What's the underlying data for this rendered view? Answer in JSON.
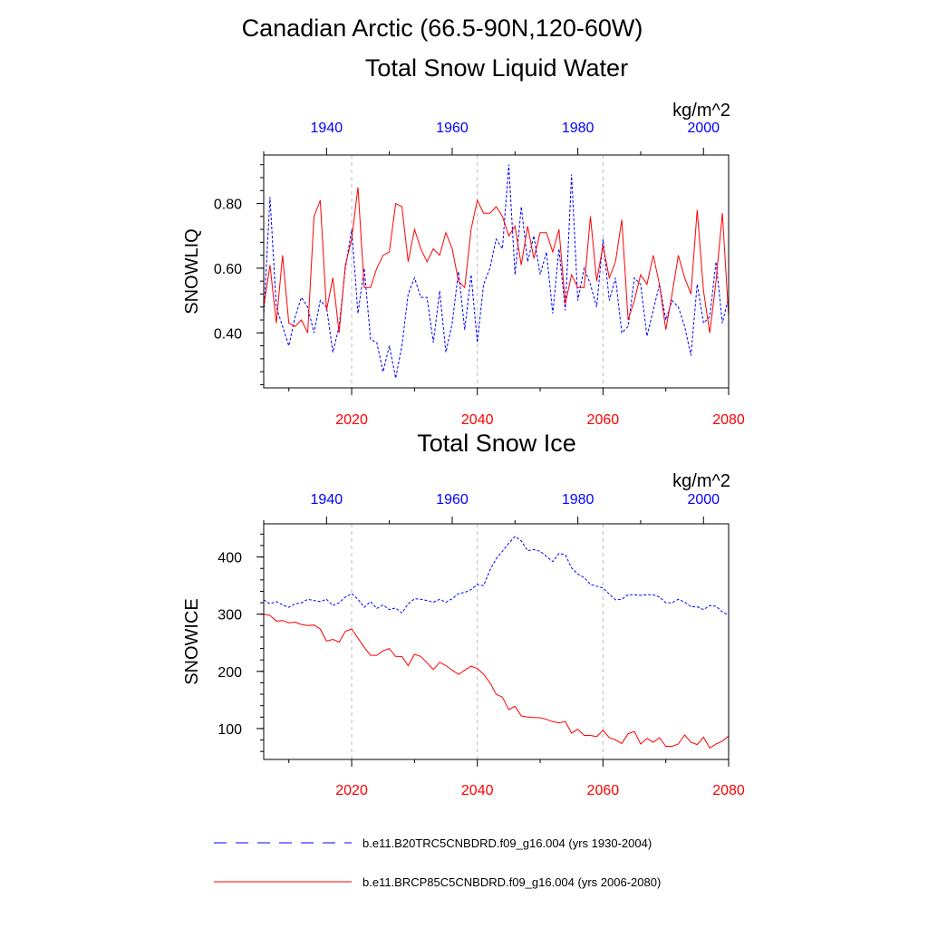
{
  "figure": {
    "title": "Canadian Arctic (66.5-90N,120-60W)"
  },
  "colors": {
    "series_a": "#0000ff",
    "series_b": "#ff0000",
    "grid": "#bbbbbb",
    "axis": "#000000"
  },
  "legend": {
    "items": [
      {
        "label": "b.e11.B20TRC5CNBDRD.f09_g16.004 (yrs 1930-2004)",
        "style": "dashed",
        "color": "#0000ff"
      },
      {
        "label": "b.e11.BRCP85C5CNBDRD.f09_g16.004 (yrs 2006-2080)",
        "style": "solid",
        "color": "#ff0000"
      }
    ]
  },
  "chart_data": [
    {
      "type": "line",
      "title": "Total Snow Liquid Water",
      "units": "kg/m^2",
      "ylabel": "SNOWLIQ",
      "ylim": [
        0.23,
        0.95
      ],
      "yticks": [
        0.4,
        0.6,
        0.8
      ],
      "ytick_labels": [
        "0.40",
        "0.60",
        "0.80"
      ],
      "bottom_axis": {
        "range": [
          2006,
          2080
        ],
        "ticks": [
          2020,
          2040,
          2060,
          2080
        ],
        "color": "#ff0000"
      },
      "top_axis": {
        "range": [
          1930,
          2004
        ],
        "ticks": [
          1940,
          1960,
          1980,
          2000
        ],
        "color": "#0000ff"
      },
      "grid_x": [
        2020,
        2040,
        2060
      ],
      "series": [
        {
          "name": "b.e11.B20TRC5CNBDRD.f09_g16.004 (yrs 1930-2004)",
          "color": "#0000ff",
          "style": "dashed",
          "axis": "top",
          "x": [
            1930,
            1931,
            1932,
            1933,
            1934,
            1935,
            1936,
            1937,
            1938,
            1939,
            1940,
            1941,
            1942,
            1943,
            1944,
            1945,
            1946,
            1947,
            1948,
            1949,
            1950,
            1951,
            1952,
            1953,
            1954,
            1955,
            1956,
            1957,
            1958,
            1959,
            1960,
            1961,
            1962,
            1963,
            1964,
            1965,
            1966,
            1967,
            1968,
            1969,
            1970,
            1971,
            1972,
            1973,
            1974,
            1975,
            1976,
            1977,
            1978,
            1979,
            1980,
            1981,
            1982,
            1983,
            1984,
            1985,
            1986,
            1987,
            1988,
            1989,
            1990,
            1991,
            1992,
            1993,
            1994,
            1995,
            1996,
            1997,
            1998,
            1999,
            2000,
            2001,
            2002,
            2003,
            2004
          ],
          "values": [
            0.45,
            0.82,
            0.48,
            0.42,
            0.36,
            0.45,
            0.51,
            0.48,
            0.4,
            0.5,
            0.48,
            0.34,
            0.42,
            0.6,
            0.72,
            0.46,
            0.6,
            0.38,
            0.37,
            0.28,
            0.36,
            0.26,
            0.36,
            0.52,
            0.57,
            0.51,
            0.51,
            0.37,
            0.53,
            0.34,
            0.43,
            0.59,
            0.41,
            0.58,
            0.37,
            0.55,
            0.6,
            0.69,
            0.66,
            0.92,
            0.58,
            0.79,
            0.62,
            0.7,
            0.58,
            0.65,
            0.46,
            0.66,
            0.47,
            0.89,
            0.5,
            0.6,
            0.55,
            0.48,
            0.69,
            0.5,
            0.57,
            0.4,
            0.42,
            0.57,
            0.55,
            0.39,
            0.47,
            0.55,
            0.44,
            0.5,
            0.48,
            0.42,
            0.33,
            0.55,
            0.43,
            0.45,
            0.62,
            0.43,
            0.51
          ]
        },
        {
          "name": "b.e11.BRCP85C5CNBDRD.f09_g16.004 (yrs 2006-2080)",
          "color": "#ff0000",
          "style": "solid",
          "axis": "bottom",
          "x": [
            2006,
            2007,
            2008,
            2009,
            2010,
            2011,
            2012,
            2013,
            2014,
            2015,
            2016,
            2017,
            2018,
            2019,
            2020,
            2021,
            2022,
            2023,
            2024,
            2025,
            2026,
            2027,
            2028,
            2029,
            2030,
            2031,
            2032,
            2033,
            2034,
            2035,
            2036,
            2037,
            2038,
            2039,
            2040,
            2041,
            2042,
            2043,
            2044,
            2045,
            2046,
            2047,
            2048,
            2049,
            2050,
            2051,
            2052,
            2053,
            2054,
            2055,
            2056,
            2057,
            2058,
            2059,
            2060,
            2061,
            2062,
            2063,
            2064,
            2065,
            2066,
            2067,
            2068,
            2069,
            2070,
            2071,
            2072,
            2073,
            2074,
            2075,
            2076,
            2077,
            2078,
            2079,
            2080
          ],
          "values": [
            0.48,
            0.61,
            0.43,
            0.64,
            0.43,
            0.42,
            0.44,
            0.4,
            0.76,
            0.81,
            0.47,
            0.57,
            0.4,
            0.61,
            0.69,
            0.85,
            0.54,
            0.54,
            0.6,
            0.64,
            0.65,
            0.8,
            0.79,
            0.62,
            0.72,
            0.66,
            0.62,
            0.66,
            0.64,
            0.71,
            0.66,
            0.56,
            0.54,
            0.72,
            0.81,
            0.77,
            0.77,
            0.79,
            0.76,
            0.7,
            0.73,
            0.61,
            0.73,
            0.63,
            0.71,
            0.71,
            0.65,
            0.72,
            0.49,
            0.58,
            0.54,
            0.54,
            0.76,
            0.56,
            0.67,
            0.57,
            0.62,
            0.75,
            0.44,
            0.5,
            0.58,
            0.55,
            0.64,
            0.55,
            0.41,
            0.52,
            0.64,
            0.57,
            0.52,
            0.78,
            0.53,
            0.4,
            0.56,
            0.77,
            0.45
          ]
        }
      ]
    },
    {
      "type": "line",
      "title": "Total Snow Ice",
      "units": "kg/m^2",
      "ylabel": "SNOWICE",
      "ylim": [
        46,
        458
      ],
      "yticks": [
        100,
        200,
        300,
        400
      ],
      "ytick_labels": [
        "100",
        "200",
        "300",
        "400"
      ],
      "bottom_axis": {
        "range": [
          2006,
          2080
        ],
        "ticks": [
          2020,
          2040,
          2060,
          2080
        ],
        "color": "#ff0000"
      },
      "top_axis": {
        "range": [
          1930,
          2004
        ],
        "ticks": [
          1940,
          1960,
          1980,
          2000
        ],
        "color": "#0000ff"
      },
      "grid_x": [
        2020,
        2040,
        2060
      ],
      "series": [
        {
          "name": "b.e11.B20TRC5CNBDRD.f09_g16.004 (yrs 1930-2004)",
          "color": "#0000ff",
          "style": "dashed",
          "axis": "top",
          "x": [
            1930,
            1931,
            1932,
            1933,
            1934,
            1935,
            1936,
            1937,
            1938,
            1939,
            1940,
            1941,
            1942,
            1943,
            1944,
            1945,
            1946,
            1947,
            1948,
            1949,
            1950,
            1951,
            1952,
            1953,
            1954,
            1955,
            1956,
            1957,
            1958,
            1959,
            1960,
            1961,
            1962,
            1963,
            1964,
            1965,
            1966,
            1967,
            1968,
            1969,
            1970,
            1971,
            1972,
            1973,
            1974,
            1975,
            1976,
            1977,
            1978,
            1979,
            1980,
            1981,
            1982,
            1983,
            1984,
            1985,
            1986,
            1987,
            1988,
            1989,
            1990,
            1991,
            1992,
            1993,
            1994,
            1995,
            1996,
            1997,
            1998,
            1999,
            2000,
            2001,
            2002,
            2003,
            2004
          ],
          "values": [
            325,
            318,
            322,
            316,
            312,
            318,
            320,
            326,
            324,
            322,
            326,
            315,
            320,
            330,
            336,
            326,
            312,
            322,
            310,
            316,
            308,
            311,
            302,
            318,
            327,
            326,
            324,
            321,
            326,
            321,
            327,
            336,
            338,
            343,
            352,
            350,
            377,
            397,
            410,
            424,
            436,
            428,
            411,
            413,
            410,
            401,
            392,
            406,
            404,
            381,
            370,
            364,
            352,
            349,
            346,
            335,
            325,
            326,
            334,
            334,
            333,
            334,
            334,
            330,
            320,
            320,
            326,
            321,
            313,
            313,
            308,
            315,
            314,
            304,
            298
          ]
        },
        {
          "name": "b.e11.BRCP85C5CNBDRD.f09_g16.004 (yrs 2006-2080)",
          "color": "#ff0000",
          "style": "solid",
          "axis": "bottom",
          "x": [
            2006,
            2007,
            2008,
            2009,
            2010,
            2011,
            2012,
            2013,
            2014,
            2015,
            2016,
            2017,
            2018,
            2019,
            2020,
            2021,
            2022,
            2023,
            2024,
            2025,
            2026,
            2027,
            2028,
            2029,
            2030,
            2031,
            2032,
            2033,
            2034,
            2035,
            2036,
            2037,
            2038,
            2039,
            2040,
            2041,
            2042,
            2043,
            2044,
            2045,
            2046,
            2047,
            2048,
            2049,
            2050,
            2051,
            2052,
            2053,
            2054,
            2055,
            2056,
            2057,
            2058,
            2059,
            2060,
            2061,
            2062,
            2063,
            2064,
            2065,
            2066,
            2067,
            2068,
            2069,
            2070,
            2071,
            2072,
            2073,
            2074,
            2075,
            2076,
            2077,
            2078,
            2079,
            2080
          ],
          "values": [
            300,
            298,
            288,
            289,
            285,
            286,
            282,
            280,
            281,
            274,
            253,
            256,
            251,
            270,
            274,
            258,
            242,
            228,
            228,
            236,
            240,
            226,
            226,
            210,
            230,
            226,
            215,
            203,
            216,
            210,
            202,
            195,
            202,
            209,
            205,
            195,
            180,
            160,
            155,
            133,
            139,
            122,
            120,
            119,
            119,
            116,
            112,
            110,
            112,
            92,
            99,
            88,
            88,
            86,
            97,
            84,
            80,
            74,
            91,
            95,
            73,
            83,
            76,
            84,
            69,
            69,
            73,
            89,
            76,
            72,
            85,
            66,
            73,
            78,
            87
          ]
        }
      ]
    }
  ]
}
